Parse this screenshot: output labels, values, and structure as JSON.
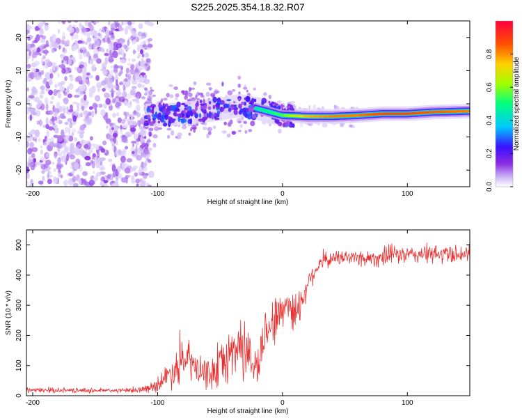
{
  "title": "S225.2025.354.18.32.R07",
  "colors": {
    "snr_line": "#e83030",
    "noise": "#8a30e8",
    "carrier_core": "#ff2020"
  },
  "chart_data": [
    {
      "type": "heatmap",
      "title": "S225.2025.354.18.32.R07",
      "xlabel": "Height of straight line (km)",
      "ylabel": "Frequency (Hz)",
      "xlim": [
        -205,
        150
      ],
      "ylim": [
        -25,
        25
      ],
      "xticks": [
        -200,
        -100,
        0,
        100
      ],
      "yticks": [
        -20,
        -10,
        0,
        10,
        20
      ],
      "colorbar": {
        "label": "Normalized spectral amplitude",
        "range": [
          0,
          1
        ],
        "ticks": [
          "0.0",
          "0.2",
          "0.4",
          "0.6",
          "0.8"
        ],
        "tick_values": [
          0,
          0.2,
          0.4,
          0.6,
          0.8
        ],
        "colormap": [
          "#ffffff",
          "#c9b3f5",
          "#8a2be2",
          "#3a10ff",
          "#00c8ff",
          "#00ff80",
          "#a0ff00",
          "#ffd000",
          "#ff5000",
          "#ff0040"
        ]
      },
      "carrier_track": {
        "x": [
          -110,
          -90,
          -70,
          -50,
          -35,
          -20,
          -10,
          0,
          20,
          40,
          60,
          80,
          100,
          120,
          150
        ],
        "freq": [
          -3.5,
          -3.2,
          -2.5,
          -1.5,
          -0.5,
          -1.5,
          -2.5,
          -3.5,
          -3.8,
          -3.8,
          -3.5,
          -3.0,
          -3.0,
          -2.5,
          -2.2
        ],
        "amplitude": [
          0.35,
          0.35,
          0.4,
          0.42,
          0.45,
          0.5,
          0.55,
          0.6,
          0.8,
          0.85,
          0.85,
          0.9,
          0.9,
          0.88,
          0.85
        ]
      },
      "noise_region_x": [
        -205,
        -105
      ]
    },
    {
      "type": "line",
      "xlabel": "Height of straight line (km)",
      "ylabel": "SNR (10 * v/v)",
      "xlim": [
        -205,
        150
      ],
      "ylim": [
        0,
        550
      ],
      "xticks": [
        -200,
        -100,
        0,
        100
      ],
      "yticks": [
        0,
        100,
        200,
        300,
        400,
        500
      ],
      "series": [
        {
          "name": "SNR",
          "x": [
            -205,
            -180,
            -150,
            -120,
            -105,
            -95,
            -85,
            -75,
            -65,
            -55,
            -45,
            -35,
            -28,
            -20,
            -12,
            -5,
            0,
            5,
            10,
            15,
            20,
            25,
            30,
            40,
            50,
            60,
            70,
            80,
            90,
            100,
            110,
            120,
            130,
            140,
            150
          ],
          "mean": [
            18,
            18,
            17,
            17,
            25,
            55,
            95,
            120,
            70,
            75,
            120,
            170,
            140,
            90,
            240,
            250,
            290,
            310,
            270,
            310,
            370,
            410,
            440,
            455,
            460,
            458,
            455,
            460,
            470,
            465,
            470,
            468,
            470,
            472,
            470
          ],
          "spread": [
            10,
            10,
            10,
            10,
            18,
            45,
            80,
            80,
            60,
            70,
            100,
            140,
            120,
            80,
            120,
            100,
            90,
            80,
            90,
            70,
            50,
            40,
            35,
            30,
            30,
            35,
            35,
            40,
            40,
            35,
            40,
            40,
            40,
            40,
            40
          ]
        }
      ]
    }
  ]
}
